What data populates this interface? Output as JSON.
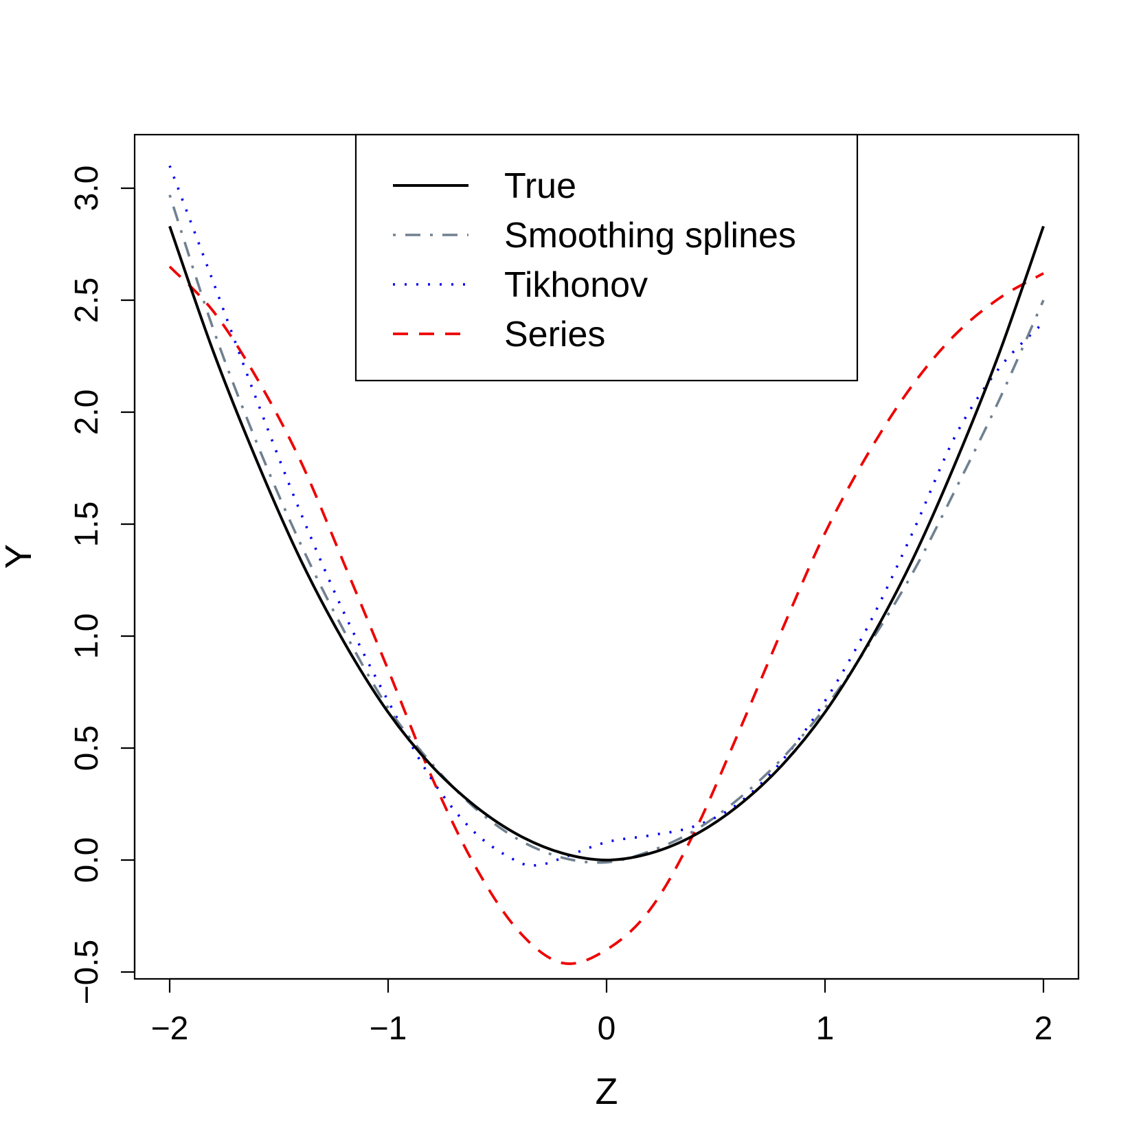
{
  "chart_data": {
    "type": "line",
    "title": "",
    "xlabel": "Z",
    "ylabel": "Y",
    "xlim": [
      -2,
      2
    ],
    "ylim": [
      -0.5,
      3.0
    ],
    "xticks": [
      -2,
      -1,
      0,
      1,
      2
    ],
    "yticks": [
      -0.5,
      0.0,
      0.5,
      1.0,
      1.5,
      2.0,
      2.5,
      3.0
    ],
    "xtick_labels": [
      "−2",
      "−1",
      "0",
      "1",
      "2"
    ],
    "ytick_labels": [
      "−0.5",
      "0.0",
      "0.5",
      "1.0",
      "1.5",
      "2.0",
      "2.5",
      "3.0"
    ],
    "grid": false,
    "legend_position": "top-center",
    "series": [
      {
        "name": "True",
        "color": "#000000",
        "linestyle": "solid",
        "x": [
          -2.0,
          -1.8,
          -1.6,
          -1.4,
          -1.2,
          -1.0,
          -0.8,
          -0.6,
          -0.4,
          -0.2,
          0.0,
          0.2,
          0.4,
          0.6,
          0.8,
          1.0,
          1.2,
          1.4,
          1.6,
          1.8,
          2.0
        ],
        "y": [
          2.83,
          2.27,
          1.78,
          1.34,
          0.97,
          0.66,
          0.42,
          0.24,
          0.11,
          0.03,
          0.0,
          0.03,
          0.11,
          0.24,
          0.42,
          0.66,
          0.97,
          1.34,
          1.78,
          2.27,
          2.83
        ]
      },
      {
        "name": "Smoothing splines",
        "color": "#708090",
        "linestyle": "dotdash",
        "x": [
          -2.0,
          -1.8,
          -1.6,
          -1.4,
          -1.2,
          -1.0,
          -0.8,
          -0.6,
          -0.4,
          -0.2,
          0.0,
          0.2,
          0.4,
          0.6,
          0.8,
          1.0,
          1.2,
          1.4,
          1.6,
          1.8,
          2.0
        ],
        "y": [
          2.97,
          2.37,
          1.86,
          1.41,
          1.02,
          0.68,
          0.43,
          0.23,
          0.09,
          0.01,
          -0.01,
          0.04,
          0.13,
          0.27,
          0.45,
          0.68,
          0.96,
          1.28,
          1.66,
          2.06,
          2.5
        ]
      },
      {
        "name": "Tikhonov",
        "color": "#0000ee",
        "linestyle": "dotted",
        "x": [
          -2.0,
          -1.8,
          -1.6,
          -1.4,
          -1.2,
          -1.0,
          -0.8,
          -0.6,
          -0.4,
          -0.3,
          -0.2,
          0.0,
          0.2,
          0.4,
          0.6,
          0.8,
          1.0,
          1.2,
          1.4,
          1.6,
          1.8,
          2.0
        ],
        "y": [
          3.1,
          2.58,
          2.05,
          1.55,
          1.1,
          0.71,
          0.36,
          0.12,
          -0.01,
          -0.02,
          0.01,
          0.08,
          0.11,
          0.15,
          0.25,
          0.44,
          0.71,
          1.05,
          1.46,
          1.9,
          2.2,
          2.4
        ]
      },
      {
        "name": "Series",
        "color": "#ee0000",
        "linestyle": "dashed",
        "x": [
          -2.0,
          -1.8,
          -1.6,
          -1.4,
          -1.2,
          -1.0,
          -0.8,
          -0.6,
          -0.4,
          -0.2,
          0.0,
          0.2,
          0.4,
          0.6,
          0.8,
          1.0,
          1.2,
          1.4,
          1.6,
          1.8,
          2.0
        ],
        "y": [
          2.65,
          2.45,
          2.15,
          1.78,
          1.32,
          0.85,
          0.37,
          -0.03,
          -0.32,
          -0.46,
          -0.4,
          -0.22,
          0.12,
          0.56,
          1.02,
          1.46,
          1.82,
          2.12,
          2.35,
          2.51,
          2.62
        ]
      }
    ]
  }
}
